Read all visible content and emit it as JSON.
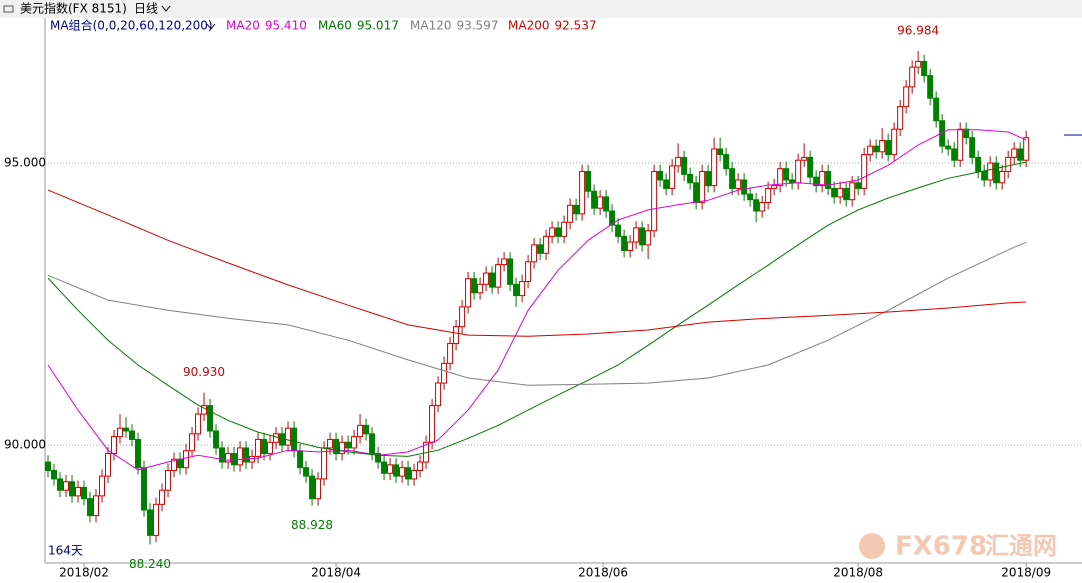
{
  "chart_data": {
    "type": "candlestick",
    "title": "美元指数(FX 8151)",
    "period": "日线",
    "ma_group": "MA组合(0,0,20,60,120,200)",
    "days": "164天",
    "watermark": [
      "FX678",
      "汇通网"
    ],
    "up_color": "#d40000",
    "down_color": "#008000",
    "open": [
      89.7,
      89.55,
      89.4,
      89.2,
      89.35,
      89.1,
      89.25,
      89.05,
      88.75,
      89.1,
      89.45,
      89.85,
      90.15,
      90.3,
      90.25,
      90.1,
      89.6,
      88.85,
      88.4,
      88.95,
      89.2,
      89.55,
      89.75,
      89.6,
      89.9,
      90.2,
      90.55,
      90.7,
      90.25,
      89.95,
      89.7,
      89.85,
      89.65,
      89.95,
      89.7,
      89.8,
      90.1,
      89.85,
      90.05,
      90.2,
      90.0,
      90.3,
      89.9,
      89.6,
      89.45,
      89.05,
      89.4,
      89.95,
      90.1,
      89.85,
      90.05,
      89.95,
      90.15,
      90.35,
      90.2,
      89.85,
      89.7,
      89.5,
      89.65,
      89.45,
      89.6,
      89.4,
      89.55,
      89.7,
      90.05,
      90.7,
      91.1,
      91.45,
      91.8,
      92.1,
      92.45,
      92.95,
      92.7,
      92.85,
      93.05,
      92.8,
      93.2,
      93.3,
      92.85,
      92.65,
      92.9,
      93.25,
      93.55,
      93.4,
      93.7,
      93.85,
      93.7,
      93.95,
      94.25,
      94.1,
      94.85,
      94.5,
      94.2,
      94.4,
      94.15,
      93.9,
      93.7,
      93.45,
      93.6,
      93.85,
      93.55,
      93.8,
      94.85,
      94.7,
      94.55,
      94.95,
      95.1,
      94.8,
      94.65,
      94.3,
      94.85,
      94.6,
      95.25,
      95.15,
      94.9,
      94.55,
      94.7,
      94.45,
      94.35,
      94.15,
      94.3,
      94.55,
      94.6,
      94.9,
      94.7,
      94.65,
      95.05,
      95.1,
      94.75,
      94.6,
      94.85,
      94.55,
      94.4,
      94.55,
      94.35,
      94.65,
      94.55,
      95.15,
      95.3,
      95.2,
      95.4,
      95.15,
      95.6,
      96.0,
      96.35,
      96.7,
      96.8,
      96.55,
      96.15,
      95.75,
      95.3,
      95.25,
      95.05,
      95.6,
      95.45,
      95.1,
      94.85,
      94.7,
      95.0,
      94.65,
      94.85,
      95.1,
      95.25,
      95.05
    ],
    "high": [
      89.82,
      89.67,
      89.52,
      89.47,
      89.47,
      89.37,
      89.37,
      89.17,
      89.22,
      89.57,
      89.97,
      90.27,
      90.55,
      90.5,
      90.37,
      90.22,
      89.72,
      88.97,
      89.07,
      89.32,
      89.67,
      89.87,
      89.87,
      90.02,
      90.32,
      90.67,
      90.93,
      90.82,
      90.37,
      90.07,
      89.97,
      89.97,
      90.07,
      90.07,
      89.92,
      90.22,
      90.22,
      90.17,
      90.32,
      90.32,
      90.42,
      90.42,
      90.02,
      89.72,
      89.57,
      89.52,
      90.07,
      90.22,
      90.22,
      90.17,
      90.17,
      90.27,
      90.55,
      90.47,
      90.32,
      89.97,
      89.82,
      89.77,
      89.77,
      89.72,
      89.72,
      89.67,
      89.82,
      90.17,
      90.82,
      91.22,
      91.57,
      91.92,
      92.22,
      92.57,
      93.07,
      93.07,
      92.97,
      93.17,
      93.17,
      93.32,
      93.42,
      93.42,
      92.97,
      93.02,
      93.37,
      93.67,
      93.67,
      93.82,
      93.97,
      93.97,
      94.07,
      94.37,
      94.37,
      94.97,
      94.97,
      94.62,
      94.52,
      94.52,
      94.27,
      94.02,
      93.82,
      93.72,
      93.97,
      93.97,
      93.92,
      94.97,
      94.97,
      94.82,
      95.07,
      95.35,
      95.22,
      94.92,
      94.77,
      94.97,
      94.97,
      95.45,
      95.45,
      95.27,
      95.02,
      94.82,
      94.82,
      94.57,
      94.47,
      94.42,
      94.67,
      94.72,
      95.02,
      95.02,
      94.82,
      95.17,
      95.35,
      95.22,
      94.87,
      94.97,
      94.97,
      94.67,
      94.67,
      94.67,
      94.77,
      94.77,
      95.27,
      95.42,
      95.42,
      95.62,
      95.52,
      95.72,
      96.12,
      96.47,
      96.82,
      96.984,
      96.92,
      96.67,
      96.27,
      95.87,
      95.42,
      95.37,
      95.72,
      95.72,
      95.57,
      95.22,
      94.97,
      95.12,
      95.12,
      94.97,
      95.22,
      95.37,
      95.37,
      95.57
    ],
    "low": [
      89.43,
      89.28,
      89.08,
      89.08,
      88.98,
      88.98,
      88.93,
      88.63,
      88.63,
      88.98,
      89.33,
      89.73,
      90.03,
      90.13,
      89.98,
      89.48,
      88.73,
      88.24,
      88.28,
      88.83,
      89.08,
      89.43,
      89.48,
      89.48,
      89.78,
      90.08,
      90.43,
      90.13,
      89.83,
      89.58,
      89.58,
      89.53,
      89.53,
      89.58,
      89.58,
      89.68,
      89.73,
      89.73,
      89.93,
      89.88,
      89.88,
      89.78,
      89.48,
      89.33,
      88.928,
      88.93,
      89.28,
      89.83,
      89.73,
      89.73,
      89.83,
      89.83,
      90.03,
      90.08,
      89.73,
      89.58,
      89.38,
      89.38,
      89.33,
      89.33,
      89.28,
      89.28,
      89.43,
      89.58,
      89.93,
      90.58,
      90.98,
      91.33,
      91.68,
      91.98,
      92.33,
      92.58,
      92.58,
      92.73,
      92.68,
      92.68,
      93.08,
      92.73,
      92.45,
      92.53,
      92.78,
      93.13,
      93.28,
      93.28,
      93.58,
      93.58,
      93.58,
      93.83,
      93.98,
      93.98,
      94.38,
      94.08,
      94.08,
      94.03,
      93.78,
      93.58,
      93.33,
      93.33,
      93.48,
      93.43,
      93.3,
      93.68,
      94.58,
      94.43,
      94.43,
      94.83,
      94.68,
      94.53,
      94.18,
      94.18,
      94.48,
      94.48,
      95.03,
      94.78,
      94.43,
      94.43,
      94.33,
      94.23,
      93.95,
      94.03,
      94.18,
      94.43,
      94.48,
      94.58,
      94.53,
      94.53,
      94.93,
      94.63,
      94.48,
      94.48,
      94.43,
      94.28,
      94.28,
      94.23,
      94.23,
      94.43,
      94.43,
      95.03,
      95.08,
      95.08,
      95.03,
      95.03,
      95.48,
      95.88,
      96.23,
      96.58,
      96.43,
      96.03,
      95.63,
      95.18,
      95.13,
      94.93,
      94.93,
      95.33,
      94.98,
      94.73,
      94.58,
      94.58,
      94.53,
      94.53,
      94.73,
      94.98,
      94.93,
      94.93
    ],
    "close": [
      89.55,
      89.4,
      89.2,
      89.35,
      89.1,
      89.25,
      89.05,
      88.75,
      89.1,
      89.45,
      89.85,
      90.15,
      90.3,
      90.25,
      90.1,
      89.6,
      88.85,
      88.4,
      88.95,
      89.2,
      89.55,
      89.75,
      89.6,
      89.9,
      90.2,
      90.55,
      90.7,
      90.25,
      89.95,
      89.7,
      89.85,
      89.65,
      89.95,
      89.7,
      89.8,
      90.1,
      89.85,
      90.05,
      90.2,
      90.0,
      90.3,
      89.9,
      89.6,
      89.45,
      89.05,
      89.4,
      89.95,
      90.1,
      89.85,
      90.05,
      89.95,
      90.15,
      90.35,
      90.2,
      89.85,
      89.7,
      89.5,
      89.65,
      89.45,
      89.6,
      89.4,
      89.55,
      89.7,
      90.05,
      90.7,
      91.1,
      91.45,
      91.8,
      92.1,
      92.45,
      92.95,
      92.7,
      92.85,
      93.05,
      92.8,
      93.2,
      93.3,
      92.85,
      92.65,
      92.9,
      93.25,
      93.55,
      93.4,
      93.7,
      93.85,
      93.7,
      93.95,
      94.25,
      94.1,
      94.85,
      94.5,
      94.2,
      94.4,
      94.15,
      93.9,
      93.7,
      93.45,
      93.6,
      93.85,
      93.55,
      93.8,
      94.85,
      94.7,
      94.55,
      94.95,
      95.1,
      94.8,
      94.65,
      94.3,
      94.85,
      94.6,
      95.25,
      95.15,
      94.9,
      94.55,
      94.7,
      94.45,
      94.35,
      94.15,
      94.3,
      94.55,
      94.6,
      94.9,
      94.7,
      94.65,
      95.05,
      95.1,
      94.75,
      94.6,
      94.85,
      94.55,
      94.4,
      94.55,
      94.35,
      94.65,
      94.55,
      95.15,
      95.3,
      95.2,
      95.4,
      95.15,
      95.6,
      96.0,
      96.35,
      96.7,
      96.8,
      96.55,
      96.15,
      95.75,
      95.3,
      95.25,
      95.05,
      95.6,
      95.45,
      95.1,
      94.85,
      94.7,
      95.0,
      94.65,
      94.85,
      95.1,
      95.25,
      95.05,
      95.45
    ],
    "series": [
      {
        "name": "MA20",
        "color": "#e000e0",
        "value_label": "95.410",
        "x": [
          0,
          5,
          10,
          15,
          20,
          25,
          30,
          35,
          40,
          45,
          50,
          55,
          60,
          65,
          70,
          75,
          80,
          85,
          90,
          95,
          100,
          105,
          110,
          115,
          120,
          125,
          130,
          135,
          140,
          145,
          150,
          155,
          160,
          163
        ],
        "values": [
          91.42,
          90.62,
          89.91,
          89.56,
          89.7,
          89.82,
          89.73,
          89.77,
          89.91,
          89.88,
          89.91,
          89.82,
          89.88,
          90.09,
          90.62,
          91.33,
          92.39,
          93.1,
          93.63,
          93.99,
          94.17,
          94.26,
          94.34,
          94.52,
          94.61,
          94.65,
          94.61,
          94.7,
          94.96,
          95.32,
          95.59,
          95.59,
          95.55,
          95.41
        ]
      },
      {
        "name": "MA60",
        "color": "#007800",
        "value_label": "95.017",
        "x": [
          0,
          5,
          10,
          15,
          20,
          25,
          30,
          35,
          40,
          45,
          50,
          55,
          60,
          65,
          70,
          75,
          80,
          85,
          90,
          95,
          100,
          105,
          110,
          115,
          120,
          125,
          130,
          135,
          140,
          145,
          150,
          155,
          160,
          163
        ],
        "values": [
          92.96,
          92.39,
          91.86,
          91.42,
          91.06,
          90.71,
          90.44,
          90.23,
          90.09,
          89.96,
          89.88,
          89.82,
          89.8,
          89.91,
          90.12,
          90.35,
          90.62,
          90.89,
          91.15,
          91.42,
          91.77,
          92.13,
          92.48,
          92.84,
          93.19,
          93.55,
          93.9,
          94.17,
          94.38,
          94.56,
          94.73,
          94.84,
          94.95,
          95.017
        ]
      },
      {
        "name": "MA120",
        "color": "#808080",
        "value_label": "93.597",
        "x": [
          0,
          10,
          20,
          30,
          40,
          50,
          60,
          70,
          80,
          90,
          100,
          110,
          120,
          130,
          140,
          150,
          160,
          163
        ],
        "values": [
          93.01,
          92.57,
          92.39,
          92.25,
          92.13,
          91.86,
          91.51,
          91.19,
          91.06,
          91.08,
          91.1,
          91.19,
          91.42,
          91.86,
          92.39,
          92.96,
          93.46,
          93.597
        ]
      },
      {
        "name": "MA200",
        "color": "#d40000",
        "value_label": "92.537",
        "x": [
          0,
          10,
          20,
          30,
          40,
          50,
          60,
          70,
          80,
          90,
          100,
          110,
          120,
          130,
          140,
          150,
          160,
          163
        ],
        "values": [
          94.52,
          94.08,
          93.63,
          93.23,
          92.84,
          92.48,
          92.13,
          91.95,
          91.93,
          91.97,
          92.04,
          92.18,
          92.25,
          92.3,
          92.36,
          92.43,
          92.52,
          92.537
        ]
      }
    ],
    "annotations": [
      {
        "value": 96.984,
        "label": "96.984",
        "index": 145
      },
      {
        "value": 90.93,
        "label": "90.930",
        "index": 26
      },
      {
        "value": 88.928,
        "label": "88.928",
        "index": 44
      },
      {
        "value": 88.24,
        "label": "88.240",
        "index": 17
      }
    ],
    "ylim": [
      87.91,
      97.27
    ],
    "yticks": [
      {
        "value": 90,
        "label": "90.000"
      },
      {
        "value": 95,
        "label": "95.000"
      }
    ],
    "grid": true,
    "xlim": [
      -0.5,
      172.3
    ],
    "xticks": [
      {
        "value": 6,
        "label": "2018/02"
      },
      {
        "value": 48,
        "label": "2018/04"
      },
      {
        "value": 92.5,
        "label": "2018/06"
      },
      {
        "value": 135,
        "label": "2018/08"
      },
      {
        "value": 163,
        "label": "2018/09"
      }
    ]
  }
}
